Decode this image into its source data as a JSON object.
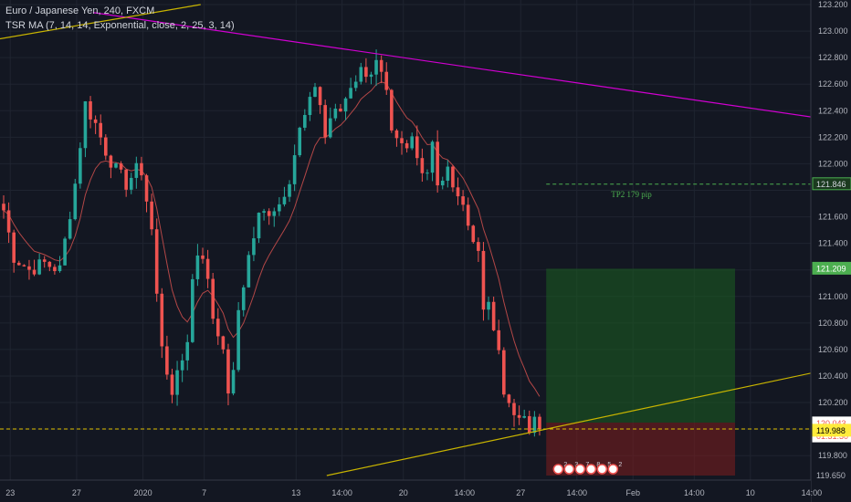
{
  "header": {
    "title": "Euro / Japanese Yen, 240, FXCM",
    "indicator": "TSR MA (7, 14, 14, Exponential, close, 2, 25, 3, 14)"
  },
  "colors": {
    "background": "#131722",
    "grid": "#1f2430",
    "up": "#26a69a",
    "down": "#ef5350",
    "ma": "#b34747",
    "trendline_magenta": "#d100d1",
    "trendline_yellow": "#c8b400",
    "target_zone": "#1b5e20",
    "stop_zone": "#7f1d1d",
    "tp2_line": "#4caf50",
    "axis_text": "#b2b5be"
  },
  "chart_data": {
    "type": "candlestick",
    "symbol": "EURJPY",
    "timeframe": "240",
    "ylim": [
      119.65,
      123.2
    ],
    "y_ticks": [
      123.2,
      123.0,
      122.8,
      122.6,
      122.4,
      122.2,
      122.0,
      121.8,
      121.6,
      121.4,
      121.2,
      121.0,
      120.8,
      120.6,
      120.4,
      120.2,
      120.0,
      119.8
    ],
    "y_tick_labels": [
      "123.200",
      "123.000",
      "122.800",
      "122.600",
      "122.400",
      "122.200",
      "122.000",
      "",
      "121.600",
      "121.400",
      "",
      "121.000",
      "120.800",
      "120.600",
      "120.400",
      "120.200",
      "",
      "119.800"
    ],
    "x_tick_labels": [
      "23",
      "27",
      "2020",
      "7",
      "13",
      "14:00",
      "20",
      "14:00",
      "27",
      "14:00",
      "Feb",
      "14:00",
      "10",
      "14:00"
    ],
    "x_tick_bars": [
      1.3,
      14.3,
      27.3,
      39.3,
      57.3,
      66.3,
      78.3,
      90.3,
      101.3,
      112.3,
      123.3,
      135.3,
      146.3,
      158.3
    ],
    "price_labels": [
      {
        "text": "121.846",
        "value": 121.846,
        "kind": "tp2"
      },
      {
        "text": "121.209",
        "value": 121.209,
        "kind": "target"
      },
      {
        "text": "120.049",
        "value": 120.049,
        "kind": "current"
      },
      {
        "text": "120.043",
        "value": 120.043,
        "kind": "last"
      },
      {
        "text": "01:31:30",
        "value": 119.945,
        "kind": "countdown"
      },
      {
        "text": "119.988",
        "value": 119.988,
        "kind": "ma"
      },
      {
        "text": "119.650",
        "value": 119.65,
        "kind": "bottom"
      }
    ],
    "annotations": [
      {
        "text": "TP2 179 pip",
        "value": 121.81
      }
    ],
    "position": {
      "entry": 120.049,
      "target": 121.209,
      "stop": 119.65,
      "start_bar": 106.3,
      "end_bar": 143.3
    },
    "tp2_line": {
      "value": 121.846,
      "start_bar": 106.3
    },
    "trendlines": [
      {
        "name": "magenta",
        "points": [
          [
            17.5,
            123.14
          ],
          [
            164.1,
            122.32
          ]
        ]
      },
      {
        "name": "yellow-upper",
        "points": [
          [
            -1,
            122.94
          ],
          [
            38.6,
            123.2
          ]
        ]
      },
      {
        "name": "yellow-lower",
        "points": [
          [
            63.3,
            119.65
          ],
          [
            164.1,
            120.47
          ]
        ]
      }
    ],
    "event_markers": [
      "2",
      "3",
      "7",
      "8",
      "5",
      "2"
    ],
    "anchors": [
      [
        0,
        121.65
      ],
      [
        2,
        121.3
      ],
      [
        5,
        121.2
      ],
      [
        8,
        121.25
      ],
      [
        11,
        121.2
      ],
      [
        14,
        121.85
      ],
      [
        16,
        122.45
      ],
      [
        18,
        122.3
      ],
      [
        20,
        122.1
      ],
      [
        22,
        121.95
      ],
      [
        24,
        121.85
      ],
      [
        26,
        121.95
      ],
      [
        27,
        121.95
      ],
      [
        29,
        121.5
      ],
      [
        30,
        121.0
      ],
      [
        31,
        120.65
      ],
      [
        32,
        120.45
      ],
      [
        33,
        120.2
      ],
      [
        34,
        120.45
      ],
      [
        36,
        120.65
      ],
      [
        37,
        121.15
      ],
      [
        38,
        121.35
      ],
      [
        40,
        121.15
      ],
      [
        41,
        120.85
      ],
      [
        42,
        120.75
      ],
      [
        43,
        120.55
      ],
      [
        44,
        120.3
      ],
      [
        45,
        120.4
      ],
      [
        46,
        120.9
      ],
      [
        48,
        121.3
      ],
      [
        50,
        121.6
      ],
      [
        52,
        121.65
      ],
      [
        54,
        121.7
      ],
      [
        56,
        121.9
      ],
      [
        58,
        122.25
      ],
      [
        60,
        122.45
      ],
      [
        61,
        122.6
      ],
      [
        62,
        122.45
      ],
      [
        63,
        122.2
      ],
      [
        64,
        122.35
      ],
      [
        66,
        122.4
      ],
      [
        67,
        122.5
      ],
      [
        68,
        122.6
      ],
      [
        70,
        122.7
      ],
      [
        72,
        122.7
      ],
      [
        73,
        122.75
      ],
      [
        74,
        122.65
      ],
      [
        75,
        122.5
      ],
      [
        76,
        122.2
      ],
      [
        77,
        122.15
      ],
      [
        79,
        122.1
      ],
      [
        80,
        122.2
      ],
      [
        81,
        122.1
      ],
      [
        82,
        121.95
      ],
      [
        83,
        121.95
      ],
      [
        84,
        122.2
      ],
      [
        85,
        121.85
      ],
      [
        86,
        121.85
      ],
      [
        87,
        121.95
      ],
      [
        88,
        121.85
      ],
      [
        89,
        121.7
      ],
      [
        90,
        121.75
      ],
      [
        91,
        121.55
      ],
      [
        92,
        121.4
      ],
      [
        93,
        121.35
      ],
      [
        94,
        120.95
      ],
      [
        95,
        120.9
      ],
      [
        96,
        120.75
      ],
      [
        97,
        120.55
      ],
      [
        98,
        120.25
      ],
      [
        99,
        120.2
      ],
      [
        100,
        120.15
      ],
      [
        101,
        120.05
      ],
      [
        102,
        120.05
      ],
      [
        103,
        120.0
      ],
      [
        104,
        120.15
      ],
      [
        105,
        120.04
      ]
    ]
  }
}
